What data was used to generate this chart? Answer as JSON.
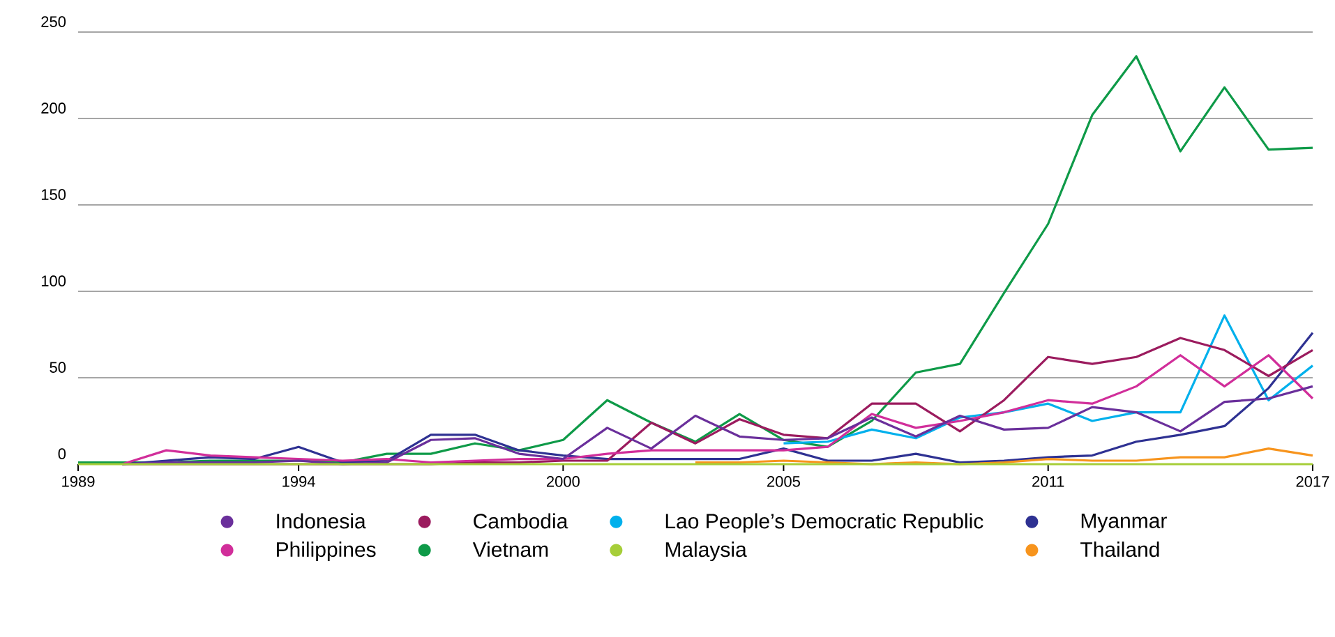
{
  "chart_data": {
    "type": "line",
    "x": [
      1989,
      1990,
      1991,
      1992,
      1993,
      1994,
      1995,
      1996,
      1997,
      1998,
      1999,
      2000,
      2001,
      2002,
      2003,
      2004,
      2005,
      2006,
      2007,
      2008,
      2009,
      2010,
      2011,
      2012,
      2013,
      2014,
      2015,
      2016,
      2017
    ],
    "xlim": [
      1989,
      2017
    ],
    "xticks": [
      1989,
      1994,
      2000,
      2005,
      2011,
      2017
    ],
    "ylim": [
      0,
      250
    ],
    "yticks": [
      0,
      50,
      100,
      150,
      200,
      250
    ],
    "grid": "y",
    "legend": "bottom",
    "marker": "none",
    "line_style": "solid",
    "series": [
      {
        "name": "Indonesia",
        "color": "#6a2f9b",
        "values": [
          null,
          0,
          1,
          1,
          1,
          2,
          0,
          1,
          14,
          15,
          6,
          3,
          21,
          9,
          28,
          16,
          14,
          15,
          27,
          16,
          28,
          20,
          21,
          33,
          30,
          19,
          36,
          38,
          45
        ]
      },
      {
        "name": "Cambodia",
        "color": "#9b1b5e",
        "values": [
          null,
          0,
          0,
          0,
          0,
          0,
          0,
          0,
          0,
          1,
          1,
          2,
          2,
          24,
          12,
          26,
          17,
          15,
          35,
          35,
          19,
          37,
          62,
          58,
          62,
          73,
          66,
          51,
          66
        ]
      },
      {
        "name": "Lao People’s Democratic Republic",
        "color": "#00b0ec",
        "values": [
          null,
          null,
          null,
          null,
          null,
          null,
          null,
          null,
          null,
          null,
          null,
          null,
          null,
          null,
          null,
          null,
          12,
          13,
          20,
          15,
          27,
          30,
          35,
          25,
          30,
          30,
          86,
          37,
          57
        ]
      },
      {
        "name": "Myanmar",
        "color": "#2e3192",
        "values": [
          null,
          0,
          2,
          4,
          3,
          10,
          1,
          2,
          17,
          17,
          8,
          5,
          3,
          3,
          3,
          3,
          9,
          2,
          2,
          6,
          1,
          2,
          4,
          5,
          13,
          17,
          22,
          44,
          76
        ]
      },
      {
        "name": "Philippines",
        "color": "#d12e9a",
        "values": [
          null,
          0,
          8,
          5,
          4,
          3,
          2,
          3,
          1,
          2,
          3,
          3,
          6,
          8,
          8,
          8,
          8,
          10,
          29,
          21,
          25,
          30,
          37,
          35,
          45,
          63,
          45,
          63,
          38
        ]
      },
      {
        "name": "Vietnam",
        "color": "#0e9a48",
        "values": [
          1,
          1,
          1,
          2,
          2,
          2,
          1,
          6,
          6,
          12,
          8,
          14,
          37,
          24,
          13,
          29,
          14,
          10,
          25,
          53,
          58,
          99,
          139,
          202,
          236,
          181,
          218,
          182,
          183
        ]
      },
      {
        "name": "Malaysia",
        "color": "#a6ce39",
        "values": [
          0,
          0,
          0,
          0,
          0,
          0,
          0,
          0,
          0,
          0,
          0,
          0,
          0,
          0,
          0,
          0,
          0,
          0,
          0,
          0,
          0,
          0,
          0,
          0,
          0,
          0,
          0,
          0,
          0
        ]
      },
      {
        "name": "Thailand",
        "color": "#f7941d",
        "values": [
          null,
          null,
          null,
          null,
          null,
          null,
          null,
          null,
          null,
          null,
          null,
          null,
          null,
          null,
          1,
          1,
          2,
          1,
          0,
          1,
          0,
          1,
          3,
          2,
          2,
          4,
          4,
          9,
          5
        ]
      }
    ]
  }
}
